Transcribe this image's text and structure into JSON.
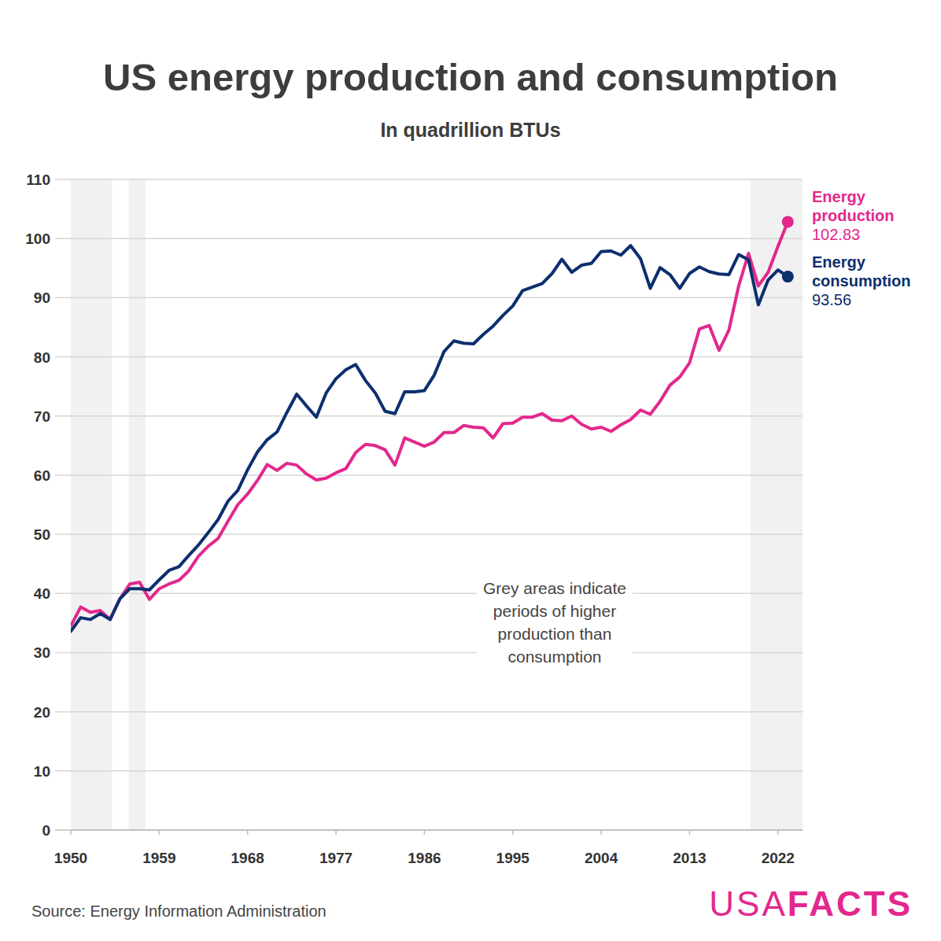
{
  "chart_data": {
    "type": "line",
    "title": "US energy production and consumption",
    "subtitle": "In quadrillion BTUs",
    "source": "Source: Energy Information Administration",
    "logo": {
      "light": "USA",
      "bold": "FACTS"
    },
    "annotation": [
      "Grey areas indicate",
      "periods of higher",
      "production than",
      "consumption"
    ],
    "shaded_periods": [
      [
        1950,
        1954.2
      ],
      [
        1955.9,
        1957.6
      ],
      [
        2019.2,
        2024.5
      ]
    ],
    "x": [
      1950,
      1951,
      1952,
      1953,
      1954,
      1955,
      1956,
      1957,
      1958,
      1959,
      1960,
      1961,
      1962,
      1963,
      1964,
      1965,
      1966,
      1967,
      1968,
      1969,
      1970,
      1971,
      1972,
      1973,
      1974,
      1975,
      1976,
      1977,
      1978,
      1979,
      1980,
      1981,
      1982,
      1983,
      1984,
      1985,
      1986,
      1987,
      1988,
      1989,
      1990,
      1991,
      1992,
      1993,
      1994,
      1995,
      1996,
      1997,
      1998,
      1999,
      2000,
      2001,
      2002,
      2003,
      2004,
      2005,
      2006,
      2007,
      2008,
      2009,
      2010,
      2011,
      2012,
      2013,
      2014,
      2015,
      2016,
      2017,
      2018,
      2019,
      2020,
      2021,
      2022,
      2023
    ],
    "series": [
      {
        "name": "Energy production",
        "color": "#e3288d",
        "marker": "last",
        "values": [
          34.5,
          37.7,
          36.8,
          37.1,
          35.6,
          39.1,
          41.6,
          41.9,
          39.0,
          40.8,
          41.6,
          42.2,
          43.8,
          46.3,
          48.0,
          49.3,
          52.2,
          55.0,
          56.8,
          59.1,
          61.8,
          60.8,
          62.0,
          61.7,
          60.2,
          59.2,
          59.5,
          60.4,
          61.1,
          63.8,
          65.2,
          65.0,
          64.3,
          61.7,
          66.3,
          65.6,
          64.9,
          65.6,
          67.2,
          67.2,
          68.4,
          68.1,
          68.0,
          66.3,
          68.7,
          68.8,
          69.8,
          69.8,
          70.4,
          69.3,
          69.2,
          70.0,
          68.6,
          67.8,
          68.1,
          67.4,
          68.5,
          69.4,
          71.0,
          70.3,
          72.5,
          75.2,
          76.6,
          79.0,
          84.7,
          85.3,
          81.1,
          84.5,
          92.0,
          97.5,
          92.0,
          94.3,
          98.7,
          102.83
        ]
      },
      {
        "name": "Energy consumption",
        "color": "#0c2f6e",
        "marker": "last",
        "values": [
          33.6,
          35.9,
          35.6,
          36.6,
          35.6,
          39.1,
          40.8,
          40.8,
          40.6,
          42.3,
          43.9,
          44.5,
          46.4,
          48.2,
          50.3,
          52.5,
          55.6,
          57.4,
          60.9,
          63.9,
          66.0,
          67.3,
          70.6,
          73.7,
          71.7,
          69.8,
          73.9,
          76.3,
          77.8,
          78.7,
          76.0,
          73.9,
          70.8,
          70.4,
          74.1,
          74.1,
          74.3,
          76.9,
          80.9,
          82.7,
          82.3,
          82.2,
          83.8,
          85.2,
          87.0,
          88.6,
          91.2,
          91.8,
          92.4,
          94.1,
          96.5,
          94.3,
          95.5,
          95.8,
          97.8,
          97.9,
          97.2,
          98.8,
          96.6,
          91.6,
          95.1,
          93.9,
          91.6,
          94.1,
          95.2,
          94.4,
          94.0,
          93.9,
          97.3,
          96.4,
          88.8,
          93.0,
          94.7,
          93.56
        ]
      }
    ],
    "xlim": [
      1950,
      2024.5
    ],
    "xticks": [
      1950,
      1959,
      1968,
      1977,
      1986,
      1995,
      2004,
      2013,
      2022
    ],
    "ylim": [
      0,
      110
    ],
    "yticks": [
      0,
      10,
      20,
      30,
      40,
      50,
      60,
      70,
      80,
      90,
      100,
      110
    ],
    "grid": true
  }
}
